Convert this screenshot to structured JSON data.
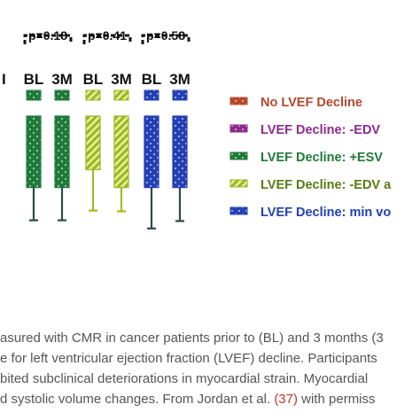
{
  "chart_data": {
    "type": "bar",
    "title": "",
    "xlabel": "",
    "ylabel": "",
    "ylim": [
      0,
      100
    ],
    "groups": [
      {
        "name": "",
        "p_value": "",
        "bl_label": "",
        "m3_label": "",
        "series_index": 0,
        "bl": {
          "value": 0,
          "lower": 0,
          "upper": 0
        },
        "m3": {
          "value": 0,
          "lower": 0,
          "upper": 0
        }
      },
      {
        "name": "",
        "p_value": "p=0.18",
        "bl_label": "BL",
        "m3_label": "3M",
        "series_index": 2,
        "bl": {
          "value": 48,
          "lower": -44,
          "upper": 48
        },
        "m3": {
          "value": 48,
          "lower": -44,
          "upper": 48
        }
      },
      {
        "name": "",
        "p_value": "p=0.41",
        "bl_label": "BL",
        "m3_label": "3M",
        "series_index": 3,
        "bl": {
          "value": 36,
          "lower": -55,
          "upper": 36
        },
        "m3": {
          "value": 48,
          "lower": -32,
          "upper": 48
        }
      },
      {
        "name": "",
        "p_value": "p=0.58",
        "bl_label": "BL",
        "m3_label": "3M",
        "series_index": 4,
        "bl": {
          "value": 48,
          "lower": -55,
          "upper": 48
        },
        "m3": {
          "value": 48,
          "lower": -45,
          "upper": 48
        }
      }
    ],
    "first_group_visible_label": "I",
    "series": [
      {
        "name": "No LVEF Decline",
        "color": "#b5472a"
      },
      {
        "name": "LVEF Decline: -EDV",
        "color": "#8e2a8c"
      },
      {
        "name": "LVEF Decline: +ESV",
        "color": "#1f7a3a"
      },
      {
        "name": "LVEF Decline: -EDV a",
        "color": "#9ab52a"
      },
      {
        "name": "LVEF Decline: min vo",
        "color": "#2340b5"
      }
    ],
    "legend_text_colors": [
      "#b5472a",
      "#8e2a8c",
      "#1f7a3a",
      "#5a7a14",
      "#2340b5"
    ],
    "legend_placement": "right",
    "grid": false
  },
  "caption": {
    "line1": "asured with CMR in cancer patients prior to (BL) and 3 months (3",
    "line2": "e for left ventricular ejection fraction (LVEF) decline. Participants",
    "line3": "bited subclinical deteriorations in myocardial strain. Myocardial",
    "line4_pre": "d systolic volume changes. From Jordan et al. ",
    "line4_cite": "(37)",
    "line4_post": " with permiss"
  }
}
